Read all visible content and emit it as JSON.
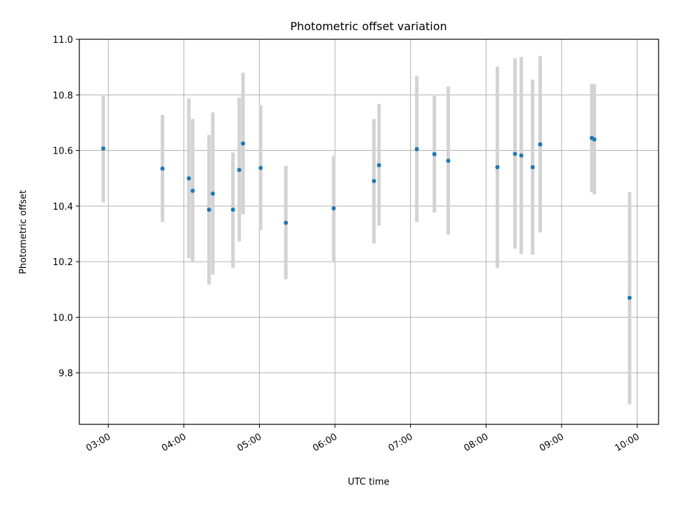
{
  "chart_data": {
    "type": "scatter",
    "title": "Photometric offset variation",
    "xlabel": "UTC time",
    "ylabel": "Photometric offset",
    "x_axis": "time",
    "xlim": [
      "02:37",
      "10:17"
    ],
    "ylim": [
      9.615,
      11.0
    ],
    "x_ticks": [
      "03:00",
      "04:00",
      "05:00",
      "06:00",
      "07:00",
      "08:00",
      "09:00",
      "10:00"
    ],
    "y_ticks": [
      9.8,
      10.0,
      10.2,
      10.4,
      10.6,
      10.8,
      11.0
    ],
    "grid": true,
    "marker_color": "#1f77b4",
    "errorbar_color": "#d3d3d3",
    "points": [
      {
        "x": "02:56",
        "y": 10.607,
        "low": 10.413,
        "high": 10.797
      },
      {
        "x": "03:43",
        "y": 10.535,
        "low": 10.343,
        "high": 10.728
      },
      {
        "x": "04:04",
        "y": 10.5,
        "low": 10.213,
        "high": 10.787
      },
      {
        "x": "04:07",
        "y": 10.455,
        "low": 10.197,
        "high": 10.713
      },
      {
        "x": "04:20",
        "y": 10.387,
        "low": 10.118,
        "high": 10.656
      },
      {
        "x": "04:23",
        "y": 10.445,
        "low": 10.153,
        "high": 10.737
      },
      {
        "x": "04:39",
        "y": 10.387,
        "low": 10.178,
        "high": 10.593
      },
      {
        "x": "04:44",
        "y": 10.53,
        "low": 10.273,
        "high": 10.79
      },
      {
        "x": "04:47",
        "y": 10.625,
        "low": 10.37,
        "high": 10.88
      },
      {
        "x": "05:01",
        "y": 10.537,
        "low": 10.313,
        "high": 10.763
      },
      {
        "x": "05:21",
        "y": 10.34,
        "low": 10.137,
        "high": 10.545
      },
      {
        "x": "05:59",
        "y": 10.392,
        "low": 10.203,
        "high": 10.58
      },
      {
        "x": "06:31",
        "y": 10.49,
        "low": 10.265,
        "high": 10.713
      },
      {
        "x": "06:35",
        "y": 10.547,
        "low": 10.33,
        "high": 10.768
      },
      {
        "x": "07:05",
        "y": 10.605,
        "low": 10.343,
        "high": 10.868
      },
      {
        "x": "07:19",
        "y": 10.587,
        "low": 10.377,
        "high": 10.797
      },
      {
        "x": "07:30",
        "y": 10.563,
        "low": 10.298,
        "high": 10.83
      },
      {
        "x": "08:09",
        "y": 10.54,
        "low": 10.178,
        "high": 10.902
      },
      {
        "x": "08:23",
        "y": 10.588,
        "low": 10.247,
        "high": 10.932
      },
      {
        "x": "08:28",
        "y": 10.582,
        "low": 10.227,
        "high": 10.937
      },
      {
        "x": "08:37",
        "y": 10.54,
        "low": 10.225,
        "high": 10.855
      },
      {
        "x": "08:43",
        "y": 10.622,
        "low": 10.305,
        "high": 10.94
      },
      {
        "x": "09:24",
        "y": 10.645,
        "low": 10.45,
        "high": 10.84
      },
      {
        "x": "09:26",
        "y": 10.64,
        "low": 10.442,
        "high": 10.838
      },
      {
        "x": "09:54",
        "y": 10.07,
        "low": 9.687,
        "high": 10.45
      }
    ]
  }
}
